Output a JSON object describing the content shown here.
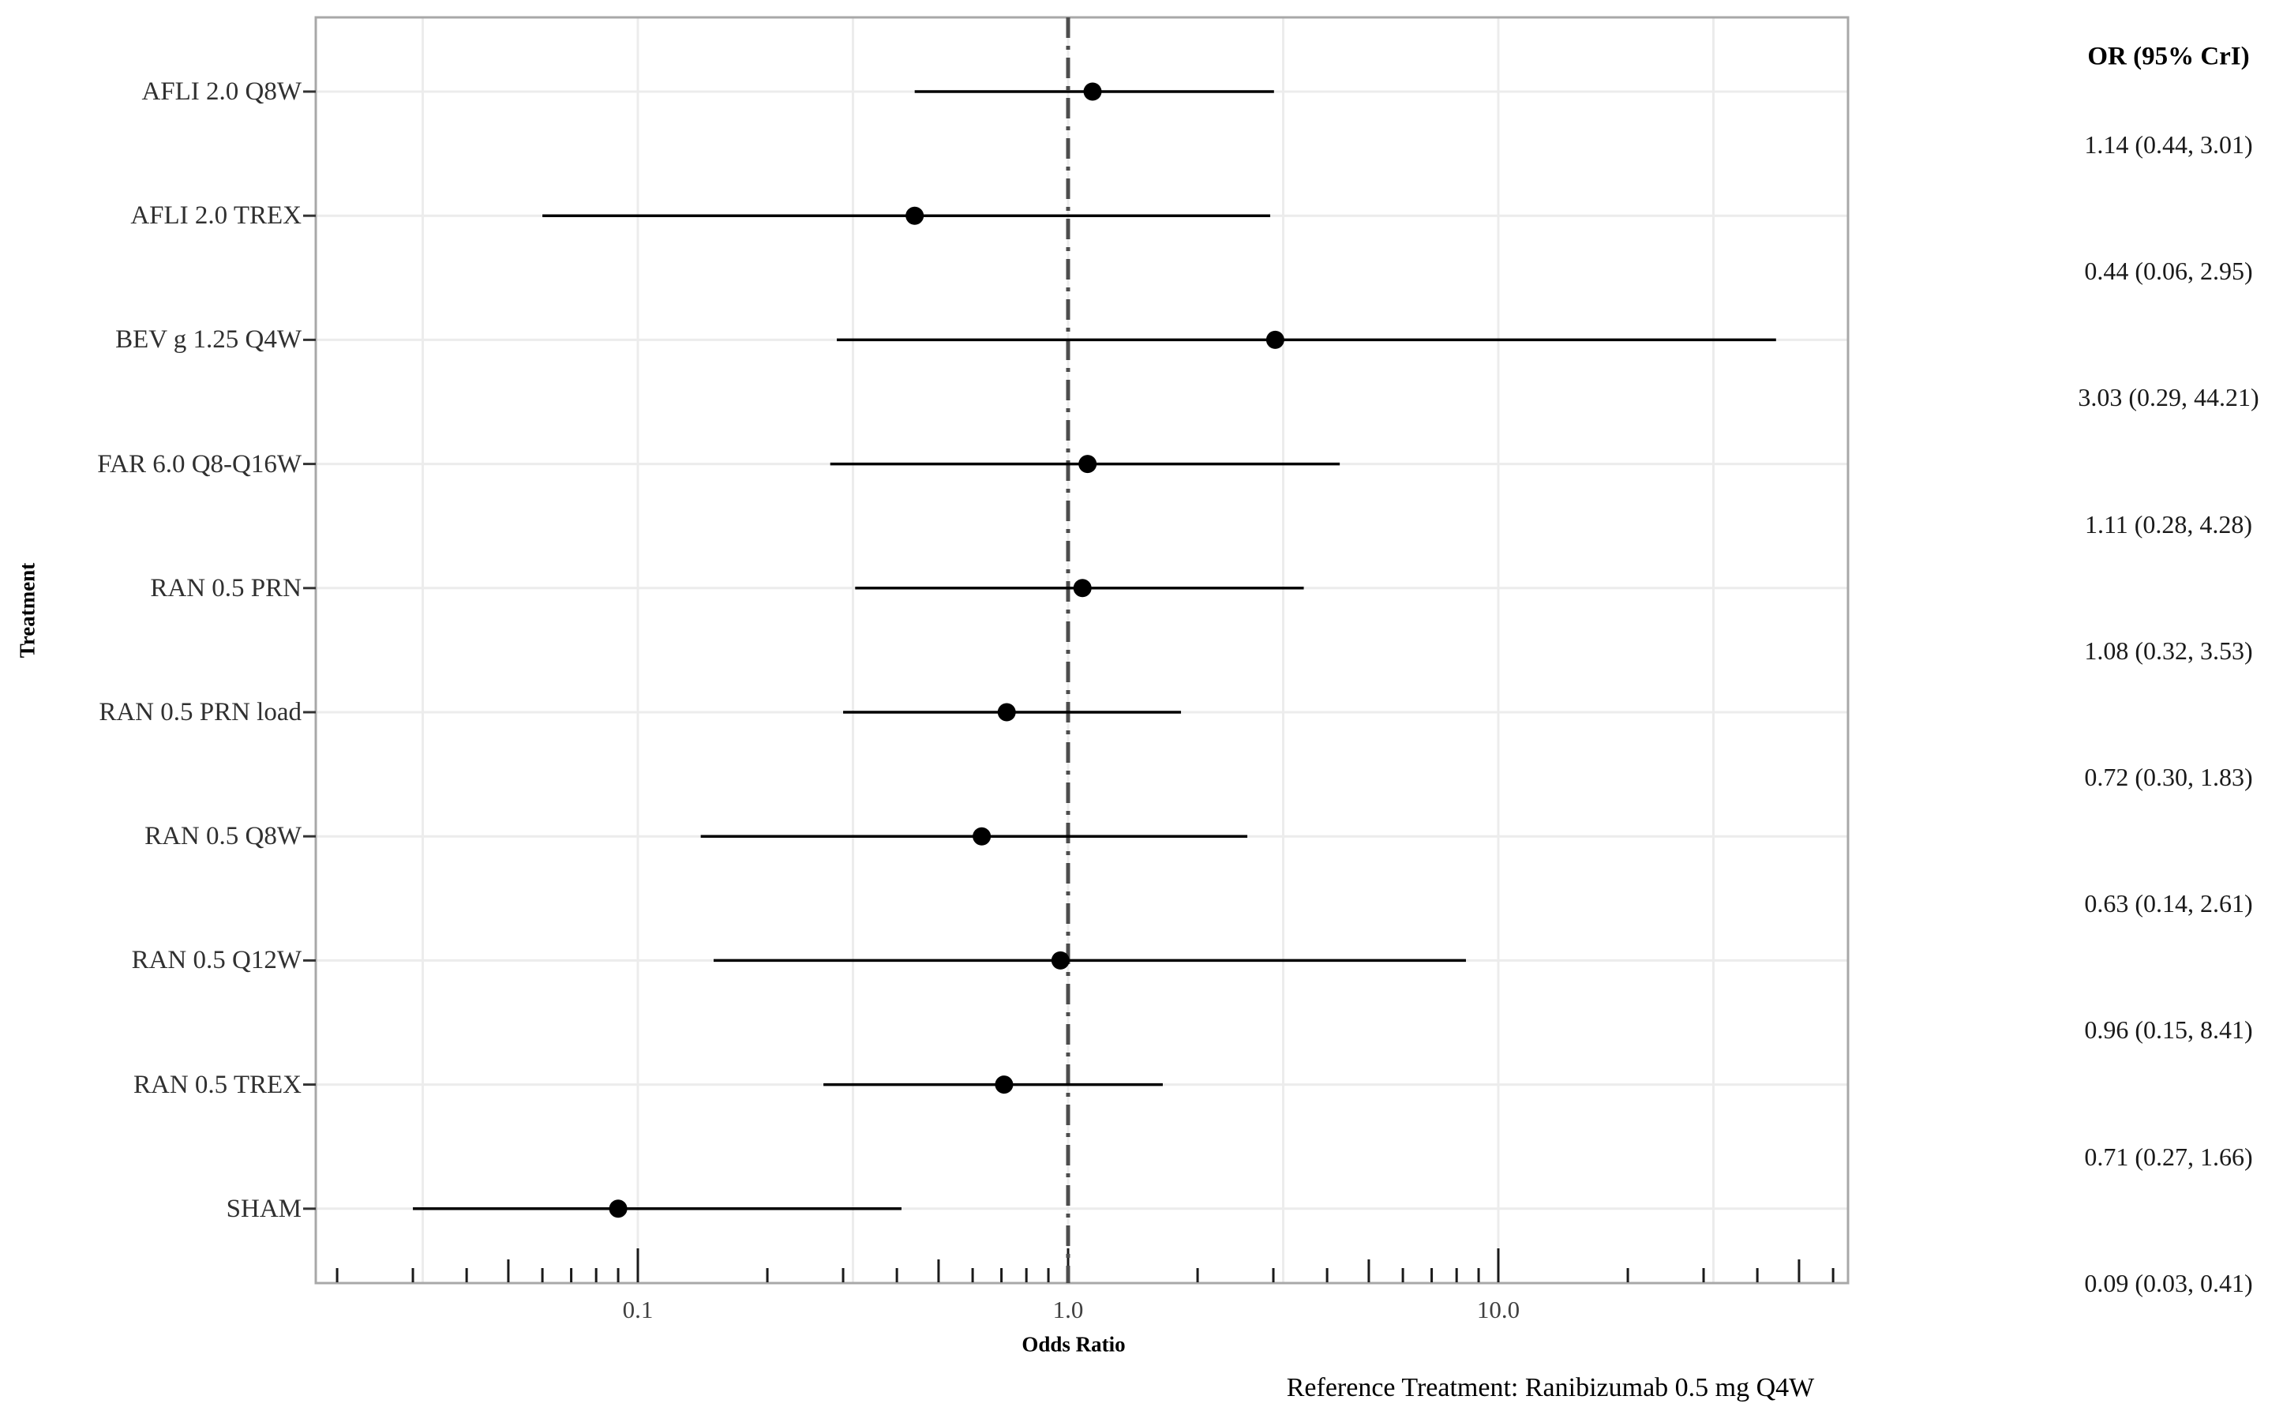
{
  "figure": {
    "footnote": "Reference Treatment: Ranibizumab 0.5 mg Q4W",
    "background": "#ffffff"
  },
  "chart_data": {
    "type": "forest",
    "title": "",
    "xlabel": "Odds Ratio",
    "ylabel": "Treatment",
    "or_column_header": "OR (95% CrI)",
    "x_scale": "log10",
    "x_range": [
      0.0176,
      64
    ],
    "reference_line": 1.0,
    "grid": "on",
    "x_ticks": [
      {
        "value": 0.1,
        "label": "0.1"
      },
      {
        "value": 1.0,
        "label": "1.0"
      },
      {
        "value": 10.0,
        "label": "10.0"
      }
    ],
    "x_gridlines": [
      0.031623,
      0.1,
      0.31623,
      1.0,
      3.1623,
      10.0,
      31.623
    ],
    "rows": [
      {
        "treatment": "AFLI 2.0 Q8W",
        "or": 1.14,
        "lower": 0.44,
        "upper": 3.01,
        "or_label": "1.14 (0.44, 3.01)"
      },
      {
        "treatment": "AFLI 2.0 TREX",
        "or": 0.44,
        "lower": 0.06,
        "upper": 2.95,
        "or_label": "0.44 (0.06, 2.95)"
      },
      {
        "treatment": "BEV g 1.25 Q4W",
        "or": 3.03,
        "lower": 0.29,
        "upper": 44.21,
        "or_label": "3.03 (0.29, 44.21)"
      },
      {
        "treatment": "FAR 6.0 Q8-Q16W",
        "or": 1.11,
        "lower": 0.28,
        "upper": 4.28,
        "or_label": "1.11 (0.28, 4.28)"
      },
      {
        "treatment": "RAN 0.5 PRN",
        "or": 1.08,
        "lower": 0.32,
        "upper": 3.53,
        "or_label": "1.08 (0.32, 3.53)"
      },
      {
        "treatment": "RAN 0.5 PRN load",
        "or": 0.72,
        "lower": 0.3,
        "upper": 1.83,
        "or_label": "0.72 (0.30, 1.83)"
      },
      {
        "treatment": "RAN 0.5 Q8W",
        "or": 0.63,
        "lower": 0.14,
        "upper": 2.61,
        "or_label": "0.63 (0.14, 2.61)"
      },
      {
        "treatment": "RAN 0.5 Q12W",
        "or": 0.96,
        "lower": 0.15,
        "upper": 8.41,
        "or_label": "0.96 (0.15, 8.41)"
      },
      {
        "treatment": "RAN 0.5 TREX",
        "or": 0.71,
        "lower": 0.27,
        "upper": 1.66,
        "or_label": "0.71 (0.27, 1.66)"
      },
      {
        "treatment": "SHAM",
        "or": 0.09,
        "lower": 0.03,
        "upper": 0.41,
        "or_label": "0.09 (0.03, 0.41)"
      }
    ]
  },
  "colors": {
    "point": "#000000",
    "ci_line": "#000000",
    "grid": "#ececec",
    "panel_border": "#a8a8a8",
    "reference_line": "#4d4d4d",
    "log_tick": "#1a1a1a",
    "y_tick": "#333333"
  }
}
